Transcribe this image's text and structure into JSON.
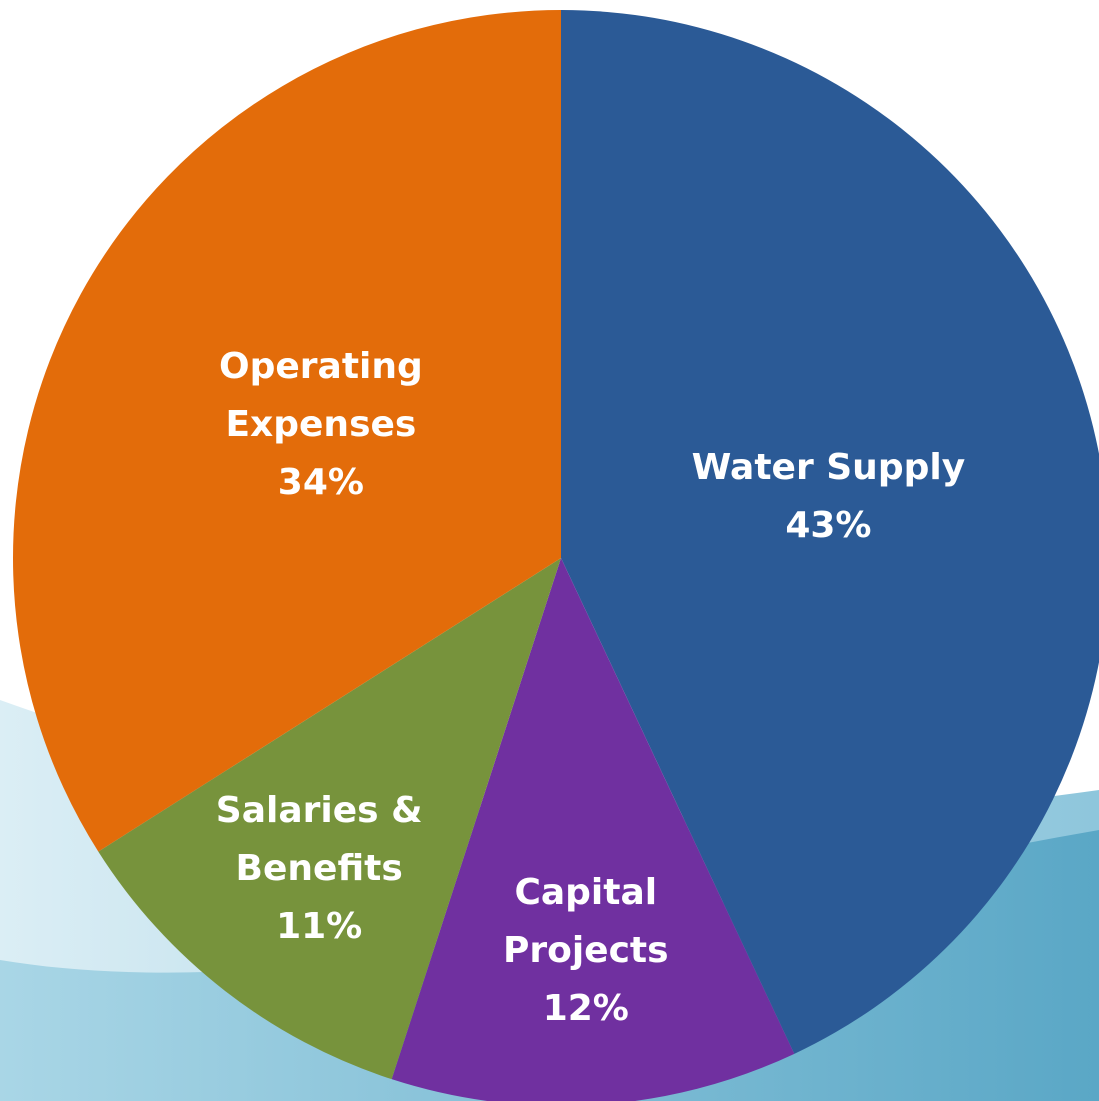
{
  "chart_data": {
    "type": "pie",
    "categories": [
      "Water Supply",
      "Capital Projects",
      "Salaries & Benefits",
      "Operating Expenses"
    ],
    "values": [
      43,
      12,
      11,
      34
    ],
    "value_labels": [
      "43%",
      "12%",
      "11%",
      "34%"
    ],
    "colors": [
      "#2b5a96",
      "#7030a0",
      "#77933c",
      "#e36c0a"
    ]
  }
}
